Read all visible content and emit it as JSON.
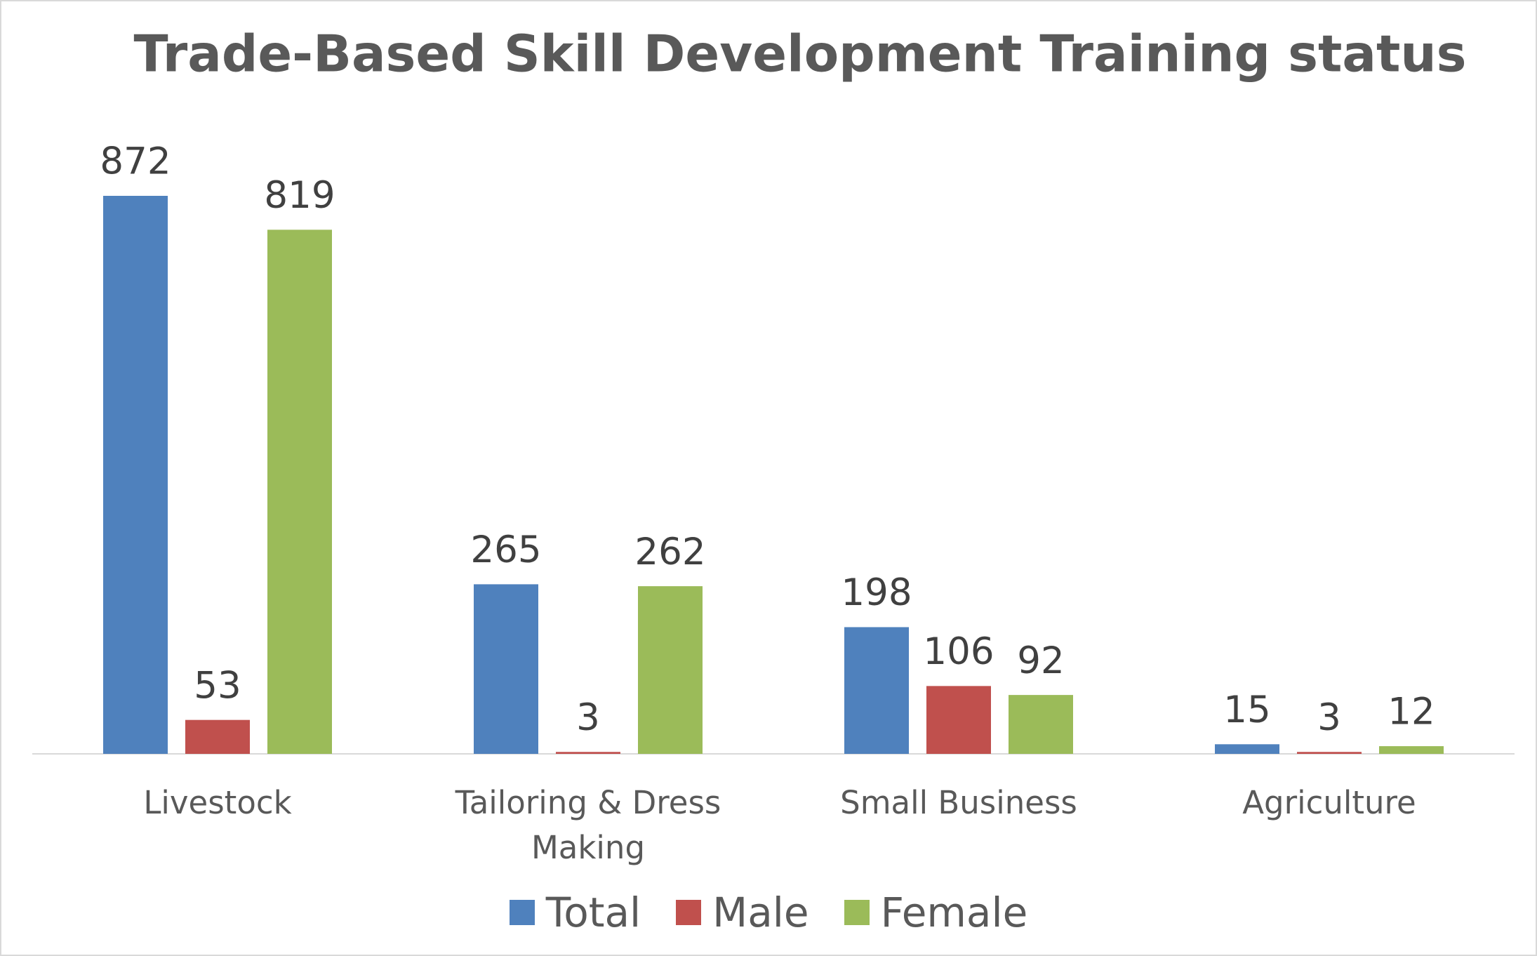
{
  "chart_data": {
    "type": "bar",
    "title": "Trade-Based Skill Development Training status",
    "categories": [
      "Livestock",
      "Tailoring & Dress Making",
      "Small Business",
      "Agriculture"
    ],
    "series": [
      {
        "name": "Total",
        "color": "#4f81bd",
        "values": [
          872,
          265,
          198,
          15
        ]
      },
      {
        "name": "Male",
        "color": "#c0504d",
        "values": [
          53,
          3,
          106,
          3
        ]
      },
      {
        "name": "Female",
        "color": "#9bbb59",
        "values": [
          819,
          262,
          92,
          12
        ]
      }
    ],
    "legend": "bottom"
  }
}
